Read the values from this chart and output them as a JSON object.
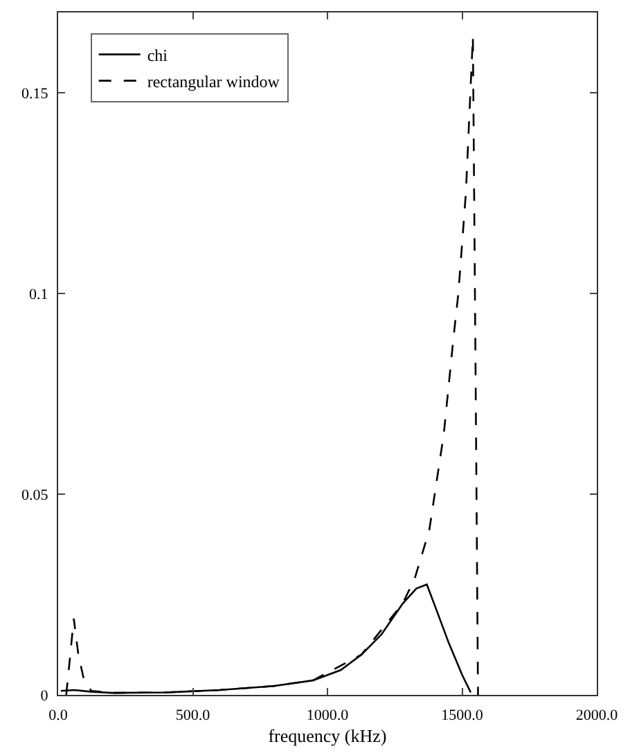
{
  "chart_data": {
    "type": "line",
    "xlabel": "frequency (kHz)",
    "xlim": [
      0,
      2000
    ],
    "ylim": [
      0,
      0.17
    ],
    "xticks": [
      {
        "value": 0,
        "label": "0.0"
      },
      {
        "value": 500,
        "label": "500.0"
      },
      {
        "value": 1000,
        "label": "1000.0"
      },
      {
        "value": 1500,
        "label": "1500.0"
      },
      {
        "value": 2000,
        "label": "2000.0"
      }
    ],
    "yticks": [
      0,
      0.05,
      {
        "value": 0.1,
        "label": "0.1"
      },
      0.15
    ],
    "legend": "top left",
    "marker": "none",
    "series": [
      {
        "name": "chi",
        "color": "#000000",
        "line_style": "solid",
        "x": [
          10,
          60,
          120,
          200,
          400,
          600,
          800,
          946,
          1050,
          1126,
          1200,
          1279,
          1330,
          1369,
          1400,
          1450,
          1500,
          1532
        ],
        "values": [
          0.001,
          0.0012,
          0.0008,
          0.0005,
          0.0006,
          0.0012,
          0.0022,
          0.0036,
          0.0062,
          0.01,
          0.015,
          0.0227,
          0.0265,
          0.0275,
          0.022,
          0.013,
          0.005,
          0.0006
        ]
      },
      {
        "name": "rectangular window",
        "color": "#000000",
        "line_style": "dashed",
        "x": [
          30,
          45,
          58,
          75,
          95,
          123,
          200,
          400,
          600,
          800,
          946,
          1126,
          1279,
          1324,
          1378,
          1405,
          1432,
          1468,
          1486,
          1514,
          1540,
          1550,
          1559
        ],
        "values": [
          0,
          0.01,
          0.019,
          0.01,
          0.004,
          0.001,
          0.0005,
          0.0006,
          0.0012,
          0.0022,
          0.0036,
          0.01,
          0.0227,
          0.029,
          0.041,
          0.053,
          0.065,
          0.089,
          0.1,
          0.125,
          0.164,
          0.08,
          0
        ]
      }
    ]
  }
}
